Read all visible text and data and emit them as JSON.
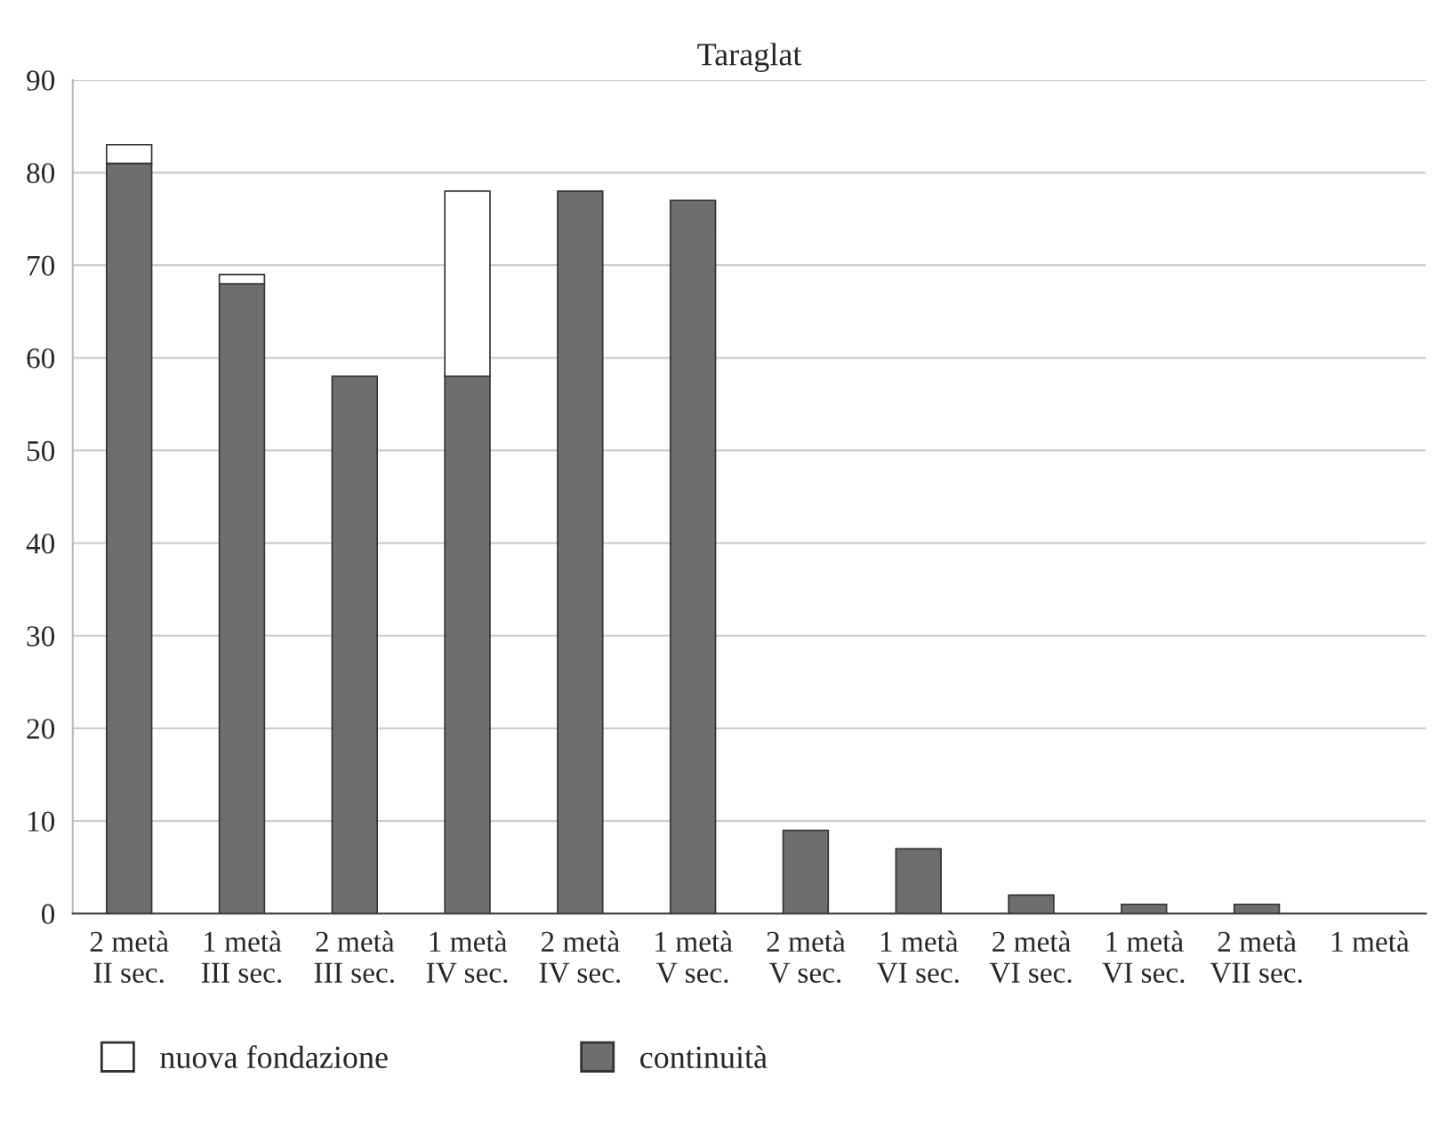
{
  "chart_data": {
    "type": "bar",
    "title": "Taraglat",
    "stacked": true,
    "categories": [
      "2 metà\nII sec.",
      "1 metà\nIII sec.",
      "2 metà\nIII sec.",
      "1 metà\nIV sec.",
      "2 metà\nIV sec.",
      "1 metà\nV sec.",
      "2 metà\nV sec.",
      "1 metà\nVI sec.",
      "2 metà\nVI sec.",
      "1 metà\nVI sec.",
      "2 metà\nVII sec.",
      "1 metà"
    ],
    "series": [
      {
        "name": "continuità",
        "color": "#6e6e6e",
        "values": [
          81,
          68,
          58,
          58,
          78,
          77,
          9,
          7,
          2,
          1,
          1,
          0
        ]
      },
      {
        "name": "nuova fondazione",
        "color": "#ffffff",
        "values": [
          2,
          1,
          0,
          20,
          0,
          0,
          0,
          0,
          0,
          0,
          0,
          0
        ]
      }
    ],
    "ylim": [
      0,
      90
    ],
    "yticks": [
      0,
      10,
      20,
      30,
      40,
      50,
      60,
      70,
      80,
      90
    ],
    "grid": "y",
    "legend": "bottom"
  }
}
